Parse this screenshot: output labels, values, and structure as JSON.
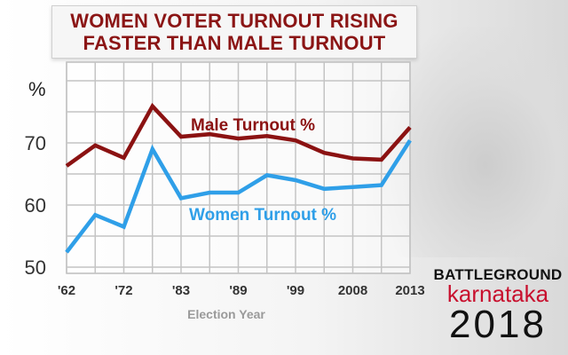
{
  "title_lines": [
    "WOMEN VOTER TURNOUT RISING",
    "FASTER THAN MALE TURNOUT"
  ],
  "brand": {
    "line1": "BATTLEGROUND",
    "line2": "karnataka",
    "line3": "2018"
  },
  "chart_data": {
    "type": "line",
    "ylabel": "%",
    "xlabel": "Election Year",
    "x_tick_labels": [
      "'62",
      "'72",
      "'83",
      "'89",
      "'99",
      "2008",
      "2013"
    ],
    "y_ticks": [
      50,
      60,
      70
    ],
    "ylim": [
      49,
      83
    ],
    "grid": true,
    "series": [
      {
        "name": "Male Turnout %",
        "color": "#8b1212",
        "values": [
          66.3,
          69.6,
          67.6,
          75.9,
          71.0,
          71.4,
          70.7,
          71.1,
          70.4,
          68.4,
          67.5,
          67.3,
          72.5
        ]
      },
      {
        "name": "Women Turnout %",
        "color": "#2f9fe8",
        "values": [
          52.4,
          58.4,
          56.5,
          69.0,
          61.1,
          62.0,
          62.0,
          64.8,
          64.0,
          62.6,
          62.9,
          63.2,
          70.4
        ]
      }
    ]
  }
}
